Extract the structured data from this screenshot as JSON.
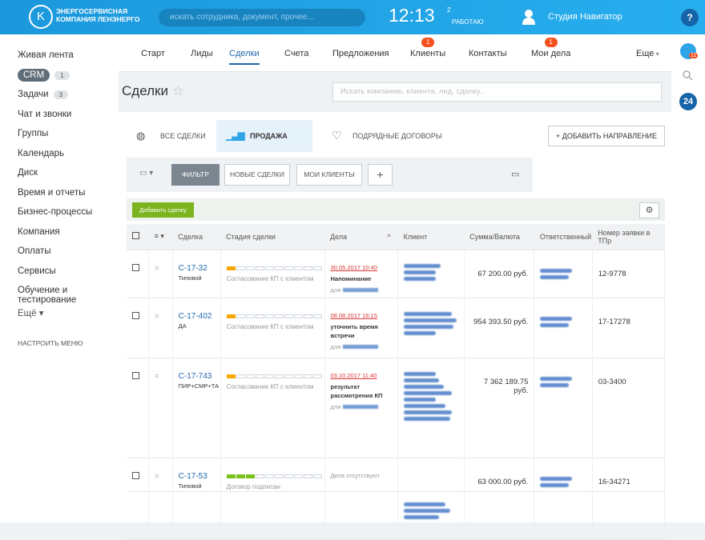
{
  "header": {
    "logo": [
      "ЭНЕРГОСЕРВИСНАЯ",
      "КОМПАНИЯ ЛЕНЭНЕРГО"
    ],
    "search": "искать сотрудника, документ, прочее...",
    "time": "12:13",
    "flags": "2",
    "status": "РАБОТАЮ",
    "user": "Студия Навигатор",
    "help": "?"
  },
  "sidebar": {
    "items": [
      {
        "label": "Живая лента"
      },
      {
        "label": "CRM",
        "badge": "1"
      },
      {
        "label": "Задачи",
        "badge": "3"
      },
      {
        "label": "Чат и звонки"
      },
      {
        "label": "Группы"
      },
      {
        "label": "Календарь"
      },
      {
        "label": "Диск"
      },
      {
        "label": "Время и отчеты"
      },
      {
        "label": "Бизнес-процессы"
      },
      {
        "label": "Компания"
      },
      {
        "label": "Оплаты"
      },
      {
        "label": "Сервисы"
      },
      {
        "label": "Обучение и тестирование"
      }
    ],
    "more": "Ещё",
    "configure": "НАСТРОИТЬ МЕНЮ"
  },
  "tabs": [
    {
      "label": "Старт"
    },
    {
      "label": "Лиды"
    },
    {
      "label": "Сделки"
    },
    {
      "label": "Счета"
    },
    {
      "label": "Предложения"
    },
    {
      "label": "Клиенты",
      "badge": "1"
    },
    {
      "label": "Контакты"
    },
    {
      "label": "Мои дела",
      "badge": "1"
    },
    {
      "label": "Еще"
    }
  ],
  "right_panel": {
    "badge": "11",
    "logo": "24"
  },
  "page": {
    "title": "Сделки",
    "search": "Искать компанию, клиента, лид, сделку..."
  },
  "directions": [
    "ВСЕ СДЕЛКИ",
    "ПРОДАЖА УСЛУГ",
    "ПОДРЯДНЫЕ ДОГОВОРЫ"
  ],
  "add_direction": "ДОБАВИТЬ НАПРАВЛЕНИЕ",
  "filters": [
    "ФИЛЬТР",
    "НОВЫЕ СДЕЛКИ",
    "МОИ КЛИЕНТЫ"
  ],
  "add_deal": "Добавить сделку",
  "table": {
    "columns": [
      "Сделка",
      "Стадия сделки",
      "Дела",
      "Клиент",
      "Сумма/Валюта",
      "Ответственный",
      "Номер заявки в ТПр"
    ],
    "rows": [
      {
        "id": "С-17-32",
        "kind": "Типовой",
        "stage": "Согласование КП с клиентом",
        "stage_color": "#f7a700",
        "date": "30.05.2017 10:40",
        "activity": "Напоминание",
        "for": "для",
        "sum": "67 200.00 руб.",
        "number": "12-9778"
      },
      {
        "id": "С-17-402",
        "kind": "ДА",
        "stage": "Согласование КП с клиентом",
        "stage_color": "#f7a700",
        "date": "08.08.2017 16:15",
        "activity": "уточнить время встречи",
        "for": "для",
        "sum": "954 393.50 руб.",
        "number": "17-17278"
      },
      {
        "id": "С-17-743",
        "kind": "ПИР+СМР+ТА",
        "stage": "Согласование КП с клиентом",
        "stage_color": "#f7a700",
        "date": "03.10.2017 11:40",
        "activity": "результат рассмотрения КП",
        "for": "для",
        "sum": "7 362 189.75 руб.",
        "number": "03-3400"
      },
      {
        "id": "С-17-53",
        "kind": "Типовой",
        "stage": "Договор подписан",
        "stage_color": "#7bc21e",
        "activity": "Дела отсутствуют",
        "sum": "63 000.00 руб.",
        "number": "16-34271"
      }
    ]
  }
}
